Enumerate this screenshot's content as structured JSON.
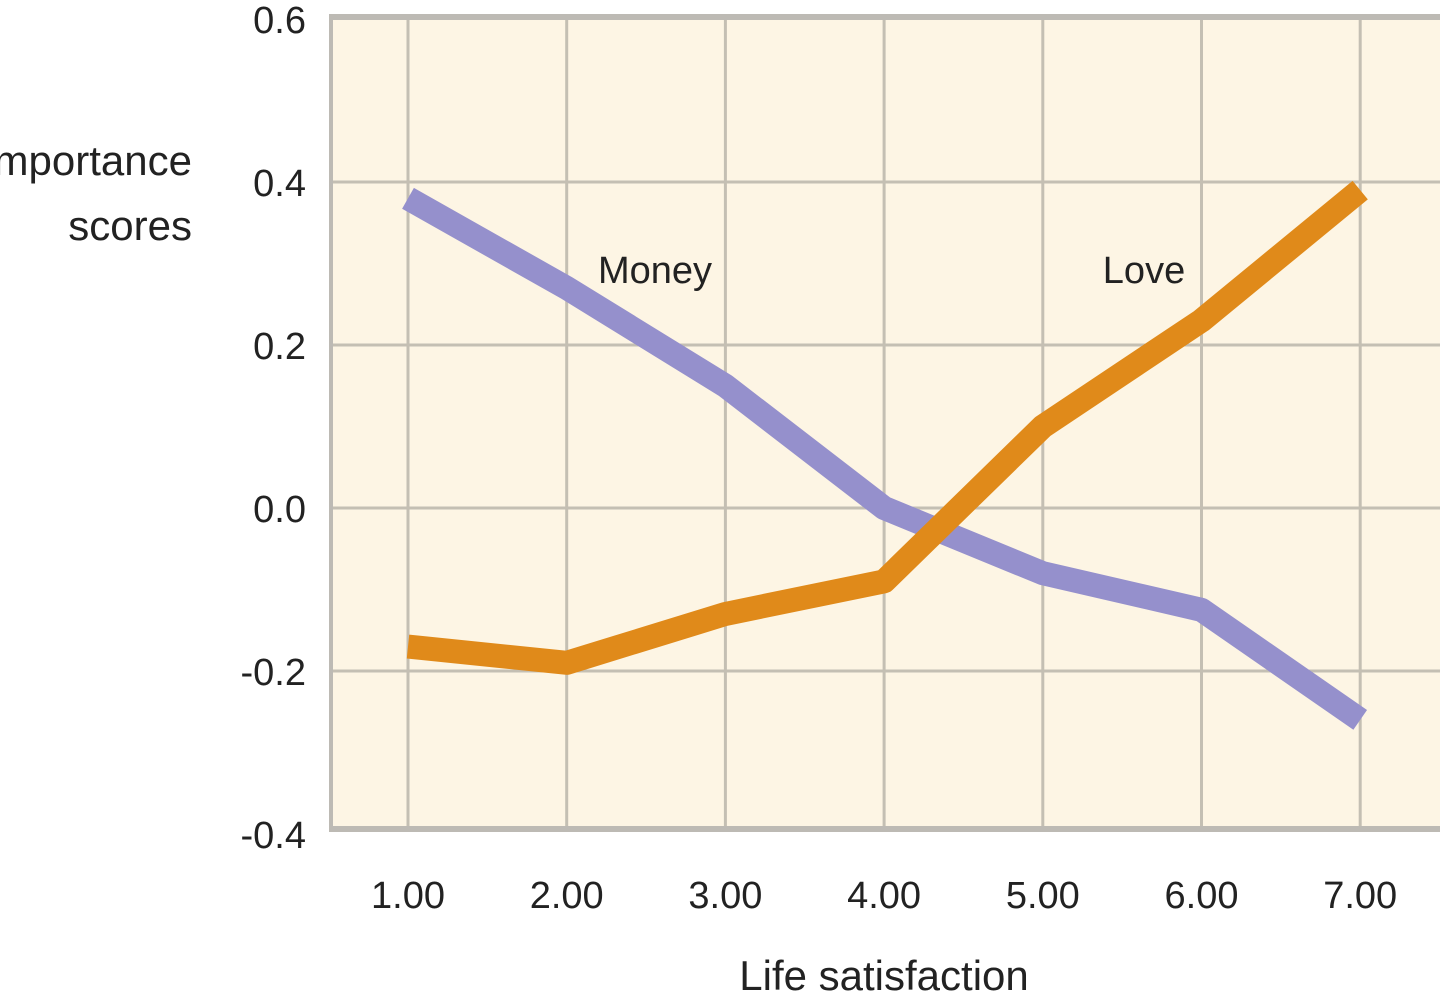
{
  "chart_data": {
    "type": "line",
    "title": "",
    "xlabel": "Life satisfaction",
    "ylabel": [
      "Importance",
      "scores"
    ],
    "x": [
      1,
      2,
      3,
      4,
      5,
      6,
      7
    ],
    "x_tick_labels": [
      "1.00",
      "2.00",
      "3.00",
      "4.00",
      "5.00",
      "6.00",
      "7.00"
    ],
    "y_tick_values": [
      0.6,
      0.4,
      0.2,
      0.0,
      -0.2,
      -0.4
    ],
    "y_tick_labels": [
      "0.6",
      "0.4",
      "0.2",
      "0.0",
      "-0.2",
      "-0.4"
    ],
    "xlim": [
      0.5,
      7.5
    ],
    "ylim": [
      -0.4,
      0.6
    ],
    "grid": true,
    "legend": "none; series labeled inline",
    "background_color": "#fdf5e4",
    "grid_color": "#c4bfb3",
    "series": [
      {
        "name": "Money",
        "color": "#9590cc",
        "values": [
          0.38,
          0.27,
          0.15,
          0.0,
          -0.08,
          -0.125,
          -0.26
        ]
      },
      {
        "name": "Love",
        "color": "#e08a1a",
        "values": [
          -0.17,
          -0.19,
          -0.13,
          -0.09,
          0.1,
          0.23,
          0.39
        ]
      }
    ],
    "annotations": [
      {
        "text": "Money",
        "series": "Money"
      },
      {
        "text": "Love",
        "series": "Love"
      }
    ]
  }
}
